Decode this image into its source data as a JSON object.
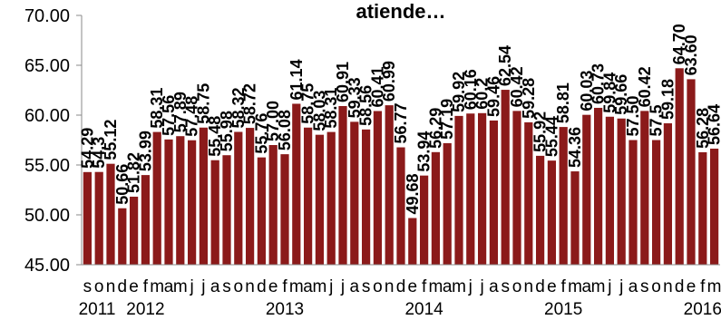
{
  "chart_data": {
    "type": "bar",
    "title": "atiende…",
    "xlabel": "",
    "ylabel": "",
    "ylim": [
      45,
      70
    ],
    "yticks": [
      "45.00",
      "50.00",
      "55.00",
      "60.00",
      "65.00",
      "70.00"
    ],
    "grid": "none",
    "legend": "none",
    "bar_color": "#8B1A1A",
    "categories": [
      "s",
      "o",
      "n",
      "d",
      "e",
      "f",
      "m",
      "a",
      "m",
      "j",
      "j",
      "a",
      "s",
      "o",
      "n",
      "d",
      "e",
      "f",
      "m",
      "a",
      "m",
      "j",
      "j",
      "a",
      "s",
      "o",
      "n",
      "d",
      "e",
      "f",
      "m",
      "a",
      "m",
      "j",
      "j",
      "a",
      "s",
      "o",
      "n",
      "d",
      "e",
      "f",
      "m",
      "a",
      "m",
      "j",
      "j",
      "a",
      "s",
      "o",
      "n",
      "d",
      "e",
      "f",
      "m"
    ],
    "values": [
      54.29,
      54.3,
      55.12,
      50.66,
      51.82,
      53.99,
      58.31,
      57.56,
      57.89,
      57.48,
      58.75,
      55.48,
      55.98,
      58.32,
      58.72,
      55.76,
      57.0,
      56.08,
      61.14,
      58.75,
      58.03,
      58.31,
      60.91,
      59.33,
      58.56,
      60.41,
      60.99,
      56.77,
      49.68,
      53.94,
      56.29,
      57.19,
      59.92,
      60.16,
      60.2,
      59.46,
      62.54,
      60.42,
      59.28,
      55.92,
      55.44,
      58.81,
      54.36,
      60.03,
      60.73,
      59.84,
      59.66,
      57.5,
      60.42,
      57.5,
      59.18,
      64.7,
      63.6,
      56.28,
      56.64
    ],
    "labels": [
      "54.29",
      "54.3",
      "55.12",
      "50.66",
      "51.82",
      "53.99",
      "58.31",
      "57.56",
      "57.89",
      "57.48",
      "58.75",
      "55.48",
      "55.98",
      "58.32",
      "58.72",
      "55.76",
      "57.00",
      "56.08",
      "61.14",
      "58.75",
      "58.03",
      "58.31",
      "60.91",
      "59.33",
      "58.56",
      "60.41",
      "60.99",
      "56.77",
      "49.68",
      "53.94",
      "56.29",
      "57.19",
      "59.92",
      "60.16",
      "60.2",
      "59.46",
      "62.54",
      "60.42",
      "59.28",
      "55.92",
      "55.44",
      "58.81",
      "54.36",
      "60.03",
      "60.73",
      "59.84",
      "59.66",
      "57.50",
      "60.42",
      "57.5",
      "59.18",
      "64.70",
      "63.60",
      "56.28",
      "56.64"
    ],
    "year_labels": [
      {
        "text": "2011",
        "index": 1.5
      },
      {
        "text": "2012",
        "index": 5
      },
      {
        "text": "2013",
        "index": 17
      },
      {
        "text": "2014",
        "index": 29
      },
      {
        "text": "2015",
        "index": 41
      },
      {
        "text": "2016",
        "index": 53
      }
    ]
  }
}
